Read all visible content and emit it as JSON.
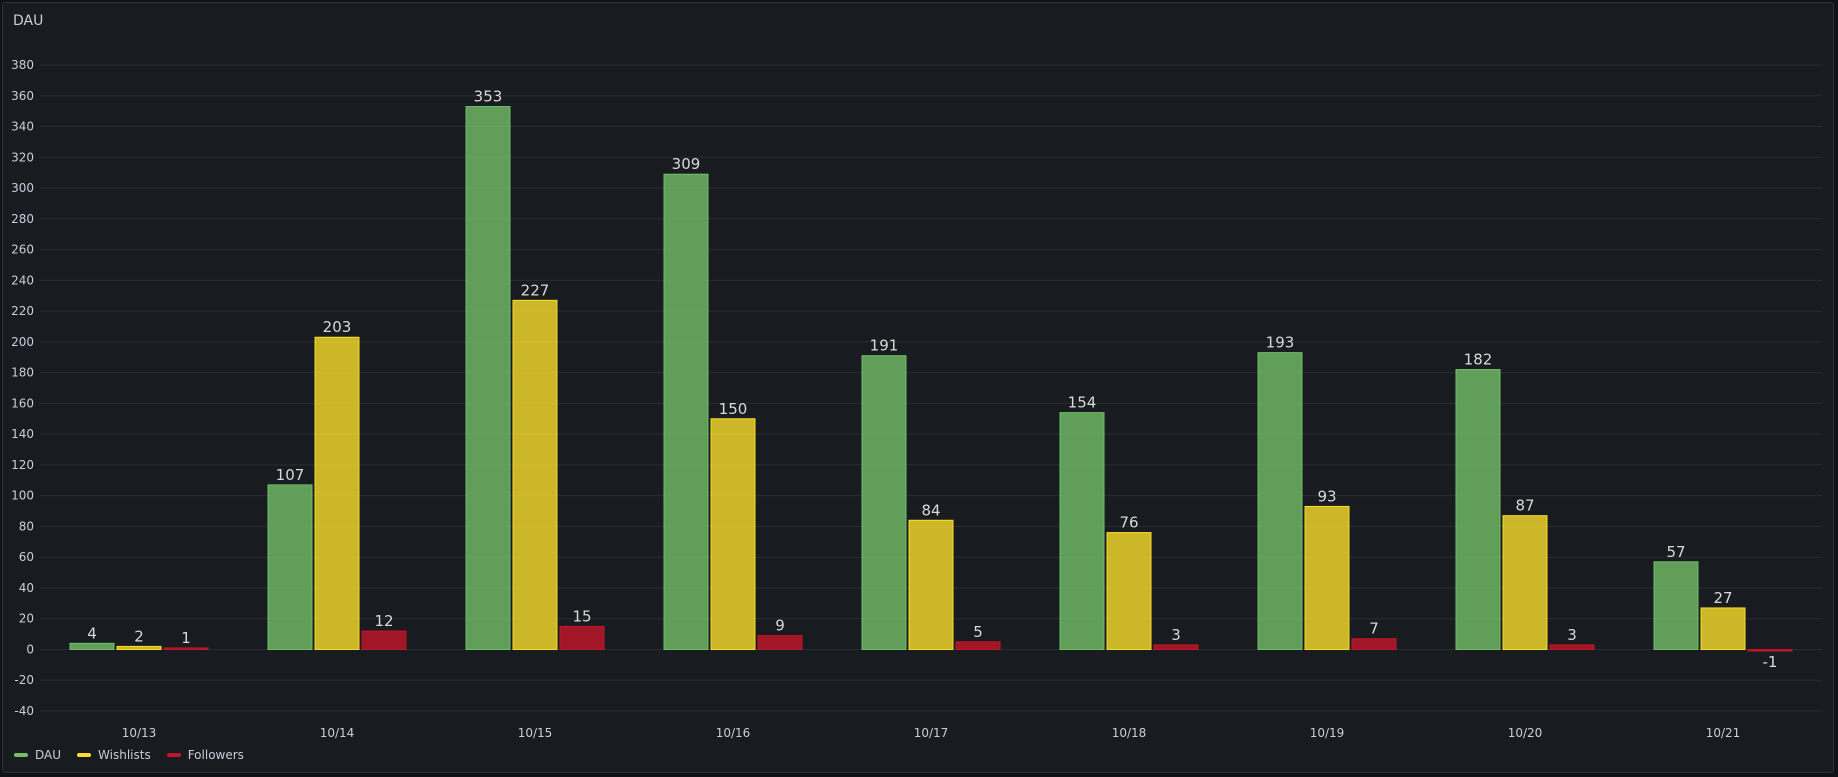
{
  "panel": {
    "title": "DAU"
  },
  "chart_data": {
    "type": "bar",
    "title": "DAU",
    "categories": [
      "10/13",
      "10/14",
      "10/15",
      "10/16",
      "10/17",
      "10/18",
      "10/19",
      "10/20",
      "10/21"
    ],
    "series": [
      {
        "name": "DAU",
        "color": "#73bf69",
        "values": [
          4,
          107,
          353,
          309,
          191,
          154,
          193,
          182,
          57
        ]
      },
      {
        "name": "Wishlists",
        "color": "#fade2a",
        "values": [
          2,
          203,
          227,
          150,
          84,
          76,
          93,
          87,
          27
        ]
      },
      {
        "name": "Followers",
        "color": "#c4162a",
        "values": [
          1,
          12,
          15,
          9,
          5,
          3,
          7,
          3,
          -1
        ]
      }
    ],
    "ylim": [
      -40,
      380
    ],
    "yticks": [
      -40,
      -20,
      0,
      20,
      40,
      60,
      80,
      100,
      120,
      140,
      160,
      180,
      200,
      220,
      240,
      260,
      280,
      300,
      320,
      340,
      360,
      380
    ],
    "grid": true,
    "legend_position": "bottom-left",
    "show_values": true
  }
}
